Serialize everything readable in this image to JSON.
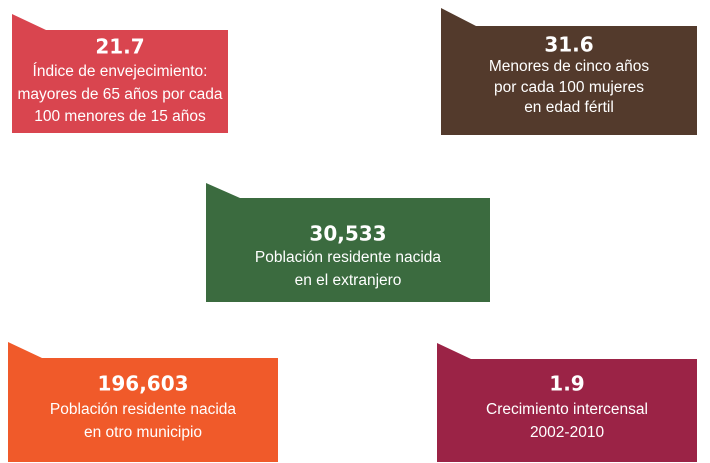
{
  "cards": [
    {
      "value": "21.7",
      "lines": [
        "Índice de envejecimiento:",
        "mayores de 65 años por cada",
        "100 menores de 15 años"
      ]
    },
    {
      "value": "31.6",
      "lines": [
        "Menores de cinco años",
        "por cada 100 mujeres",
        "en edad fértil"
      ]
    },
    {
      "value": "30,533",
      "lines": [
        "Población residente nacida",
        "en el extranjero"
      ]
    },
    {
      "value": "196,603",
      "lines": [
        "Población residente nacida",
        "en otro municipio"
      ]
    },
    {
      "value": "1.9",
      "lines": [
        "Crecimiento intercensal",
        "2002-2010"
      ]
    }
  ]
}
